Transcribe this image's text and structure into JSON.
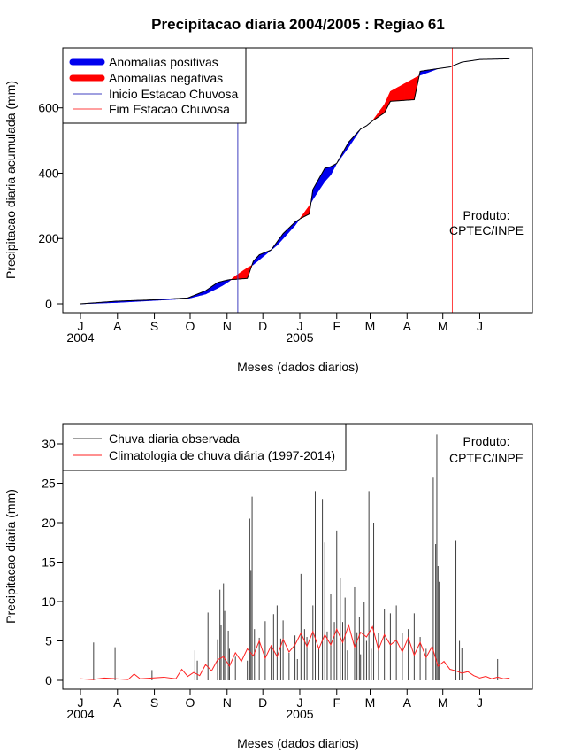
{
  "title": "Precipitacao diaria 2004/2005 : Regiao 61",
  "colors": {
    "positive": "#0000ee",
    "negative": "#ff0000",
    "start_line": "#4040c0",
    "end_line": "#ff4040",
    "observed": "#404040",
    "climatology": "#ff2020"
  },
  "chart_data": [
    {
      "type": "area",
      "title": "Precipitacao diaria 2004/2005 : Regiao 61",
      "xlabel": "Meses (dados diarios)",
      "ylabel": "Precipitacao diaria acumulada (mm)",
      "ylim": [
        0,
        780
      ],
      "y_ticks": [
        0,
        200,
        400,
        600
      ],
      "x_tick_labels": [
        "J",
        "A",
        "S",
        "O",
        "N",
        "D",
        "J",
        "F",
        "M",
        "A",
        "M",
        "J"
      ],
      "x_tick_days": [
        0,
        31,
        62,
        92,
        123,
        153,
        184,
        215,
        243,
        274,
        304,
        335
      ],
      "x_year_labels": [
        {
          "label": "2004",
          "day": 0
        },
        {
          "label": "2005",
          "day": 184
        }
      ],
      "legend": [
        "Anomalias positivas",
        "Anomalias negativas",
        "Inicio Estacao Chuvosa",
        "Fim Estacao Chuvosa"
      ],
      "annotation": [
        "Produto:",
        "CPTEC/INPE"
      ],
      "rainy_season_start_day": 132,
      "rainy_season_end_day": 312,
      "observed_cumulative": {
        "days": [
          0,
          30,
          60,
          90,
          105,
          115,
          120,
          125,
          130,
          140,
          145,
          150,
          160,
          165,
          170,
          180,
          185,
          192,
          195,
          205,
          210,
          215,
          225,
          235,
          240,
          245,
          255,
          260,
          280,
          285,
          300,
          310,
          320,
          335,
          360
        ],
        "values": [
          0,
          8,
          12,
          18,
          40,
          65,
          70,
          74,
          75,
          78,
          130,
          150,
          165,
          190,
          215,
          250,
          262,
          275,
          350,
          415,
          420,
          430,
          495,
          535,
          545,
          560,
          585,
          620,
          625,
          712,
          720,
          725,
          740,
          748,
          750
        ]
      },
      "climatology_cumulative": {
        "days": [
          0,
          30,
          60,
          90,
          105,
          115,
          120,
          125,
          130,
          140,
          145,
          150,
          160,
          165,
          170,
          180,
          185,
          192,
          195,
          205,
          210,
          215,
          225,
          235,
          240,
          245,
          255,
          260,
          280,
          285,
          300,
          310,
          320,
          335,
          360
        ],
        "values": [
          0,
          4,
          10,
          16,
          30,
          48,
          58,
          70,
          85,
          110,
          120,
          135,
          165,
          180,
          200,
          240,
          265,
          300,
          320,
          375,
          395,
          430,
          480,
          535,
          545,
          560,
          610,
          650,
          690,
          700,
          720,
          725,
          740,
          748,
          750
        ]
      }
    },
    {
      "type": "bar",
      "xlabel": "Meses (dados diarios)",
      "ylabel": "Precipitacao diaria (mm)",
      "ylim": [
        0,
        32
      ],
      "y_ticks": [
        0,
        5,
        10,
        15,
        20,
        25,
        30
      ],
      "x_tick_labels": [
        "J",
        "A",
        "S",
        "O",
        "N",
        "D",
        "J",
        "F",
        "M",
        "A",
        "M",
        "J"
      ],
      "x_tick_days": [
        0,
        31,
        62,
        92,
        123,
        153,
        184,
        215,
        243,
        274,
        304,
        335
      ],
      "x_year_labels": [
        {
          "label": "2004",
          "day": 0
        },
        {
          "label": "2005",
          "day": 184
        }
      ],
      "legend": [
        "Chuva diaria observada",
        "Climatologia de chuva diária (1997-2014)"
      ],
      "annotation": [
        "Produto:",
        "CPTEC/INPE"
      ],
      "observed_daily": {
        "days": [
          11,
          29,
          60,
          96,
          98,
          107,
          115,
          117,
          118,
          120,
          121,
          124,
          125,
          130,
          140,
          142,
          143,
          144,
          146,
          150,
          155,
          160,
          162,
          165,
          168,
          170,
          175,
          180,
          182,
          185,
          188,
          190,
          195,
          197,
          200,
          203,
          205,
          207,
          210,
          213,
          215,
          218,
          220,
          222,
          224,
          230,
          232,
          234,
          235,
          238,
          240,
          242,
          244,
          246,
          250,
          255,
          260,
          265,
          270,
          275,
          280,
          285,
          290,
          296,
          298,
          299,
          300,
          301,
          315,
          318,
          320,
          350
        ],
        "values": [
          4.8,
          4.2,
          1.3,
          3.8,
          2.5,
          8.6,
          5.2,
          11.5,
          7.0,
          12.3,
          8.8,
          6.3,
          4.0,
          3.0,
          2.5,
          20.5,
          14.0,
          23.3,
          6.5,
          5.4,
          7.5,
          4.4,
          8.4,
          9.5,
          5.3,
          7.6,
          3.5,
          5.7,
          2.7,
          13.5,
          6.5,
          5.5,
          9.5,
          24.0,
          4.2,
          23.0,
          17.5,
          6.2,
          11.0,
          7.4,
          19.0,
          13.0,
          7.4,
          10.5,
          3.8,
          11.8,
          6.1,
          8.0,
          3.3,
          10.0,
          5.0,
          24.0,
          4.0,
          20.0,
          6.0,
          9.0,
          8.5,
          9.5,
          6.0,
          6.5,
          8.5,
          5.5,
          4.0,
          25.7,
          17.3,
          31.2,
          14.5,
          12.5,
          17.7,
          5.0,
          4.1,
          2.7
        ]
      },
      "climatology_daily": {
        "days": [
          0,
          10,
          20,
          30,
          40,
          45,
          50,
          60,
          70,
          80,
          85,
          90,
          95,
          100,
          105,
          110,
          115,
          120,
          125,
          130,
          135,
          140,
          145,
          150,
          155,
          160,
          165,
          170,
          175,
          180,
          185,
          190,
          195,
          200,
          205,
          210,
          215,
          220,
          225,
          230,
          235,
          240,
          245,
          250,
          255,
          260,
          265,
          270,
          275,
          280,
          285,
          290,
          295,
          300,
          305,
          310,
          315,
          320,
          325,
          330,
          335,
          340,
          345,
          350,
          355,
          360
        ],
        "values": [
          0.2,
          0.1,
          0.3,
          0.2,
          0.1,
          0.8,
          0.2,
          0.3,
          0.4,
          0.2,
          1.4,
          0.5,
          1.0,
          0.6,
          2.0,
          1.2,
          2.6,
          3.0,
          1.8,
          3.5,
          2.4,
          4.0,
          3.1,
          5.0,
          2.8,
          4.4,
          3.0,
          5.2,
          3.6,
          4.5,
          6.0,
          4.3,
          6.2,
          4.0,
          5.8,
          4.5,
          6.5,
          4.8,
          7.0,
          4.2,
          6.1,
          5.5,
          6.8,
          3.9,
          5.8,
          4.5,
          5.1,
          3.6,
          5.4,
          3.2,
          4.8,
          2.9,
          4.3,
          1.8,
          2.4,
          1.4,
          1.2,
          0.9,
          1.1,
          0.6,
          0.3,
          0.5,
          0.2,
          0.4,
          0.2,
          0.3
        ]
      }
    }
  ]
}
